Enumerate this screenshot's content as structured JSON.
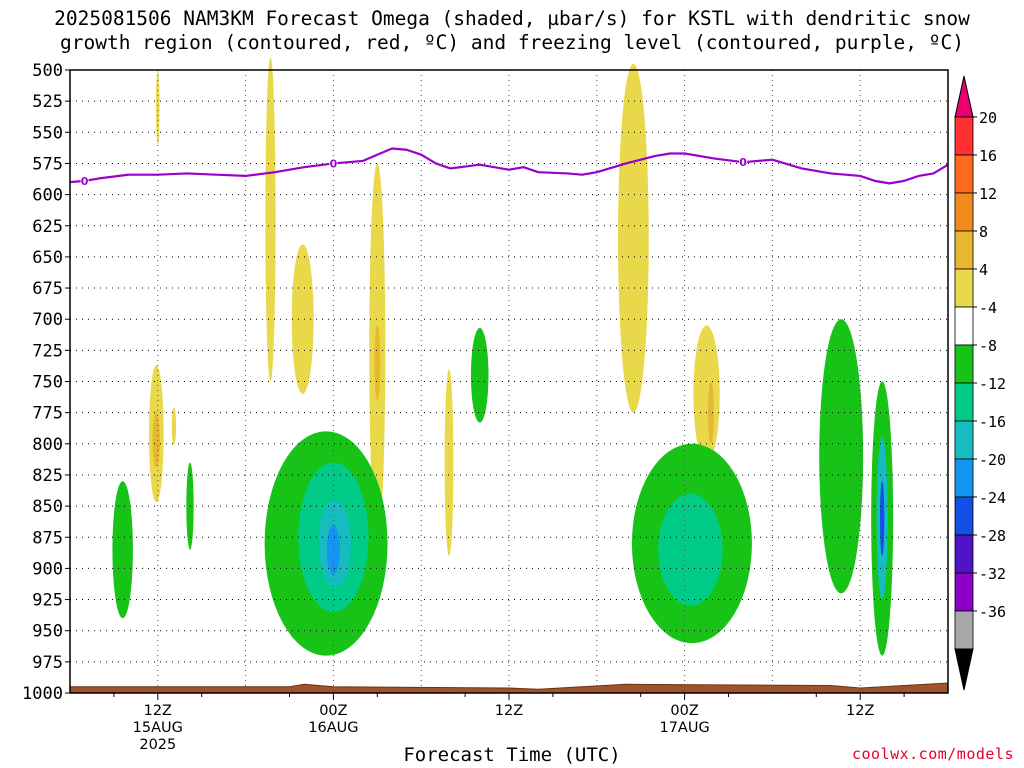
{
  "title_line1": "2025081506 NAM3KM Forecast Omega (shaded, µbar/s) for KSTL with dendritic snow",
  "title_line2": "growth region (contoured, red, ºC) and freezing level (contoured, purple, ºC)",
  "credit": "coolwx.com/models",
  "colors": {
    "freezing_level": "#9900cc",
    "ground": "#a0522d",
    "grid": "#000000"
  },
  "chart_data": {
    "type": "heatmap",
    "title": "2025081506 NAM3KM Forecast Omega (shaded, µbar/s) for KSTL with dendritic snow growth region (contoured, red, ºC) and freezing level (contoured, purple, ºC)",
    "xlabel": "Forecast Time (UTC)",
    "ylabel": "",
    "x_range_hours": [
      0,
      60
    ],
    "ylim": [
      1000,
      500
    ],
    "y_ticks": [
      500,
      525,
      550,
      575,
      600,
      625,
      650,
      675,
      700,
      725,
      750,
      775,
      800,
      825,
      850,
      875,
      900,
      925,
      950,
      975,
      1000
    ],
    "x_ticks": [
      {
        "hour": 6,
        "lines": [
          "12Z",
          "15AUG",
          "2025"
        ]
      },
      {
        "hour": 18,
        "lines": [
          "00Z",
          "16AUG"
        ]
      },
      {
        "hour": 30,
        "lines": [
          "12Z"
        ]
      },
      {
        "hour": 42,
        "lines": [
          "00Z",
          "17AUG"
        ]
      },
      {
        "hour": 54,
        "lines": [
          "12Z"
        ]
      }
    ],
    "grid": true,
    "colorbar": {
      "placement": "right",
      "tick_labels": [
        "20",
        "16",
        "12",
        "8",
        "4",
        "-4",
        "-8",
        "-12",
        "-16",
        "-20",
        "-24",
        "-28",
        "-32",
        "-36"
      ],
      "bins": [
        {
          "color": "#e8006e"
        },
        {
          "color": "#ff3030"
        },
        {
          "color": "#ff6a20"
        },
        {
          "color": "#f08c1e"
        },
        {
          "color": "#e6b830"
        },
        {
          "color": "#e8d84a"
        },
        {
          "color": "#ffffff"
        },
        {
          "color": "#16c316"
        },
        {
          "color": "#00cc88"
        },
        {
          "color": "#16bcc0"
        },
        {
          "color": "#1496f0"
        },
        {
          "color": "#1450e6"
        },
        {
          "color": "#5014c8"
        },
        {
          "color": "#8c00c8"
        },
        {
          "color": "#a8a8a8"
        },
        {
          "color": "#000000"
        }
      ]
    },
    "freezing_level_hpa": [
      {
        "hour": 0,
        "p": 590
      },
      {
        "hour": 1,
        "p": 589
      },
      {
        "hour": 2,
        "p": 587
      },
      {
        "hour": 4,
        "p": 584
      },
      {
        "hour": 6,
        "p": 584
      },
      {
        "hour": 8,
        "p": 583
      },
      {
        "hour": 10,
        "p": 584
      },
      {
        "hour": 12,
        "p": 585
      },
      {
        "hour": 14,
        "p": 582
      },
      {
        "hour": 16,
        "p": 578
      },
      {
        "hour": 18,
        "p": 575
      },
      {
        "hour": 20,
        "p": 573
      },
      {
        "hour": 21,
        "p": 568
      },
      {
        "hour": 22,
        "p": 563
      },
      {
        "hour": 23,
        "p": 564
      },
      {
        "hour": 24,
        "p": 568
      },
      {
        "hour": 25,
        "p": 575
      },
      {
        "hour": 26,
        "p": 579
      },
      {
        "hour": 28,
        "p": 576
      },
      {
        "hour": 30,
        "p": 580
      },
      {
        "hour": 31,
        "p": 578
      },
      {
        "hour": 32,
        "p": 582
      },
      {
        "hour": 34,
        "p": 583
      },
      {
        "hour": 35,
        "p": 584
      },
      {
        "hour": 36,
        "p": 582
      },
      {
        "hour": 38,
        "p": 575
      },
      {
        "hour": 40,
        "p": 569
      },
      {
        "hour": 41,
        "p": 567
      },
      {
        "hour": 42,
        "p": 567
      },
      {
        "hour": 43,
        "p": 569
      },
      {
        "hour": 44,
        "p": 571
      },
      {
        "hour": 46,
        "p": 574
      },
      {
        "hour": 48,
        "p": 572
      },
      {
        "hour": 50,
        "p": 579
      },
      {
        "hour": 52,
        "p": 583
      },
      {
        "hour": 54,
        "p": 585
      },
      {
        "hour": 55,
        "p": 589
      },
      {
        "hour": 56,
        "p": 591
      },
      {
        "hour": 57,
        "p": 589
      },
      {
        "hour": 58,
        "p": 585
      },
      {
        "hour": 59,
        "p": 583
      },
      {
        "hour": 60,
        "p": 576
      }
    ],
    "freezing_level_labels": [
      {
        "hour": 1,
        "p": 589,
        "text": "0"
      },
      {
        "hour": 18,
        "p": 575,
        "text": "0"
      },
      {
        "hour": 46,
        "p": 574,
        "text": "0"
      }
    ],
    "omega_regions": [
      {
        "color": "#e8d84a",
        "center_hour": 5.9,
        "center_p": 792,
        "half_width_hours": 0.5,
        "half_height_hpa": 55
      },
      {
        "color": "#e6b830",
        "center_hour": 5.9,
        "center_p": 797,
        "half_width_hours": 0.25,
        "half_height_hpa": 22
      },
      {
        "color": "#e8d84a",
        "center_hour": 7.1,
        "center_p": 786,
        "half_width_hours": 0.15,
        "half_height_hpa": 15
      },
      {
        "color": "#e8d84a",
        "center_hour": 6.0,
        "center_p": 530,
        "half_width_hours": 0.12,
        "half_height_hpa": 30
      },
      {
        "color": "#e8d84a",
        "center_hour": 13.7,
        "center_p": 620,
        "half_width_hours": 0.35,
        "half_height_hpa": 130
      },
      {
        "color": "#e8d84a",
        "center_hour": 15.9,
        "center_p": 700,
        "half_width_hours": 0.75,
        "half_height_hpa": 60
      },
      {
        "color": "#e8d84a",
        "center_hour": 21.0,
        "center_p": 725,
        "half_width_hours": 0.55,
        "half_height_hpa": 150
      },
      {
        "color": "#e6b830",
        "center_hour": 21.0,
        "center_p": 735,
        "half_width_hours": 0.2,
        "half_height_hpa": 30
      },
      {
        "color": "#e8d84a",
        "center_hour": 25.9,
        "center_p": 815,
        "half_width_hours": 0.3,
        "half_height_hpa": 75
      },
      {
        "color": "#e8d84a",
        "center_hour": 38.5,
        "center_p": 635,
        "half_width_hours": 1.05,
        "half_height_hpa": 140
      },
      {
        "color": "#e8d84a",
        "center_hour": 43.5,
        "center_p": 760,
        "half_width_hours": 0.9,
        "half_height_hpa": 55
      },
      {
        "color": "#e6b830",
        "center_hour": 43.8,
        "center_p": 775,
        "half_width_hours": 0.2,
        "half_height_hpa": 25
      },
      {
        "color": "#16c316",
        "center_hour": 3.6,
        "center_p": 885,
        "half_width_hours": 0.7,
        "half_height_hpa": 55
      },
      {
        "color": "#16c316",
        "center_hour": 8.2,
        "center_p": 850,
        "half_width_hours": 0.25,
        "half_height_hpa": 35
      },
      {
        "color": "#16c316",
        "center_hour": 17.5,
        "center_p": 880,
        "half_width_hours": 4.2,
        "half_height_hpa": 90
      },
      {
        "color": "#00cc88",
        "center_hour": 18.0,
        "center_p": 875,
        "half_width_hours": 2.4,
        "half_height_hpa": 60
      },
      {
        "color": "#16bcc0",
        "center_hour": 18.1,
        "center_p": 880,
        "half_width_hours": 1.1,
        "half_height_hpa": 35
      },
      {
        "color": "#1496f0",
        "center_hour": 18.0,
        "center_p": 885,
        "half_width_hours": 0.45,
        "half_height_hpa": 20
      },
      {
        "color": "#16c316",
        "center_hour": 28.0,
        "center_p": 745,
        "half_width_hours": 0.6,
        "half_height_hpa": 38
      },
      {
        "color": "#16c316",
        "center_hour": 42.5,
        "center_p": 880,
        "half_width_hours": 4.1,
        "half_height_hpa": 80
      },
      {
        "color": "#00cc88",
        "center_hour": 42.4,
        "center_p": 885,
        "half_width_hours": 2.2,
        "half_height_hpa": 45
      },
      {
        "color": "#16c316",
        "center_hour": 52.7,
        "center_p": 810,
        "half_width_hours": 1.5,
        "half_height_hpa": 110
      },
      {
        "color": "#16c316",
        "center_hour": 55.5,
        "center_p": 860,
        "half_width_hours": 0.75,
        "half_height_hpa": 110
      },
      {
        "color": "#16bcc0",
        "center_hour": 55.5,
        "center_p": 860,
        "half_width_hours": 0.38,
        "half_height_hpa": 65
      },
      {
        "color": "#1450e6",
        "center_hour": 55.5,
        "center_p": 860,
        "half_width_hours": 0.15,
        "half_height_hpa": 30
      }
    ],
    "surface_pressure_hpa": [
      {
        "hour": 0,
        "p": 995
      },
      {
        "hour": 15,
        "p": 995
      },
      {
        "hour": 16,
        "p": 993
      },
      {
        "hour": 18,
        "p": 995
      },
      {
        "hour": 30,
        "p": 996
      },
      {
        "hour": 32,
        "p": 997
      },
      {
        "hour": 38,
        "p": 993
      },
      {
        "hour": 52,
        "p": 994
      },
      {
        "hour": 54,
        "p": 996
      },
      {
        "hour": 57,
        "p": 994
      },
      {
        "hour": 60,
        "p": 992
      }
    ]
  }
}
